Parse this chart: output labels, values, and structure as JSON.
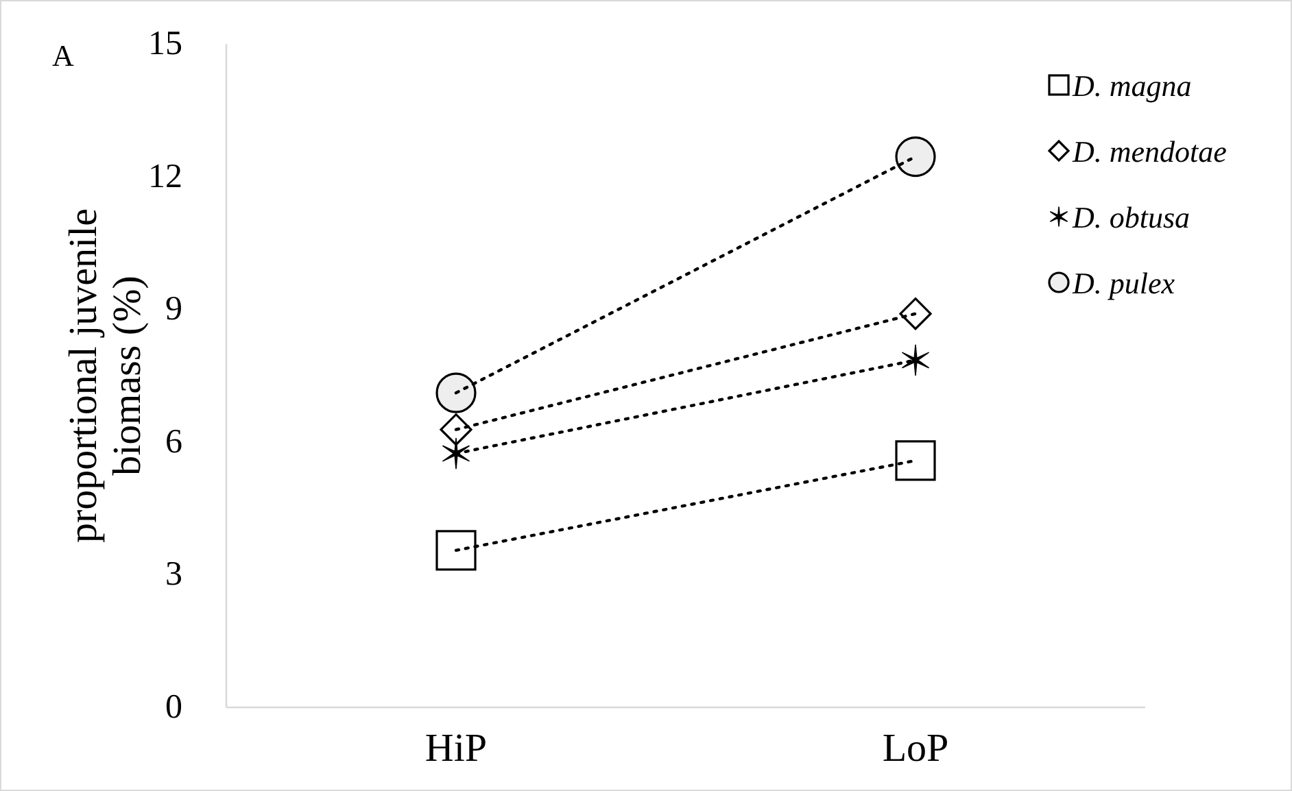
{
  "chart_data": {
    "type": "line",
    "ylabel": "proportional juvenile biomass (%)",
    "annotations": [
      "A"
    ],
    "categories": [
      "HiP",
      "LoP"
    ],
    "ylim": [
      0,
      15
    ],
    "yticks": [
      0,
      3,
      6,
      9,
      12,
      15
    ],
    "grid": false,
    "legend": "top right",
    "line_style": "dotted",
    "series": [
      {
        "name": "D. magna",
        "color": "#000000",
        "marker": "square",
        "values": [
          3.55,
          5.58
        ]
      },
      {
        "name": "D. mendotae",
        "color": "#000000",
        "marker": "diamond",
        "values": [
          6.28,
          8.9
        ]
      },
      {
        "name": "D. obtusa",
        "color": "#000000",
        "marker": "cross",
        "values": [
          5.74,
          7.85
        ]
      },
      {
        "name": "D. pulex",
        "color": "#000000",
        "marker": "circle",
        "values": [
          7.11,
          12.45
        ]
      }
    ]
  }
}
